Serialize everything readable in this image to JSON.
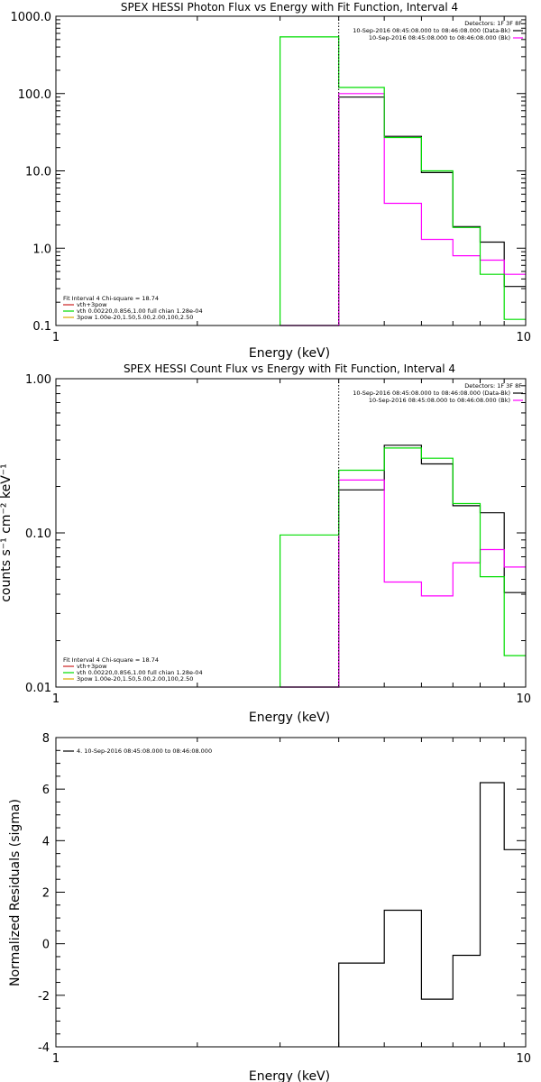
{
  "chart_data": [
    {
      "id": "photon",
      "type": "line",
      "title": "SPEX HESSI Photon Flux vs Energy with Fit Function, Interval 4",
      "xlabel": "Energy (keV)",
      "ylabel": "",
      "xscale": "log",
      "yscale": "log",
      "xlim": [
        1,
        10
      ],
      "ylim": [
        0.1,
        1000
      ],
      "x_ticks": [
        "1",
        "10"
      ],
      "y_ticks": [
        "1000.0",
        "100.0",
        "10.0",
        "1.0",
        "0.1"
      ],
      "edges": [
        3,
        4,
        5,
        6,
        7,
        8,
        9,
        10
      ],
      "series": [
        {
          "name": "10-Sep-2016 08:45:08.000 to 08:46:08.000 (Data-Bk)",
          "color": "#000000",
          "values": [
            0.1,
            90,
            28,
            9.5,
            1.9,
            1.2,
            0.32
          ]
        },
        {
          "name": "10-Sep-2016 08:45:08.000 to 08:46:08.000 (Bk)",
          "color": "#ff00ff",
          "values": [
            0.1,
            100,
            3.8,
            1.3,
            0.8,
            0.7,
            0.46
          ]
        },
        {
          "name": "vth 0.00220,0.856,1.00  full chian 1.28e-04",
          "color": "#00dd00",
          "values": [
            540,
            120,
            27,
            10,
            1.85,
            0.46,
            0.12
          ]
        },
        {
          "name": "3pow 1.00e-20,1.50,5.00,2.00,100,2.50",
          "color": "#ddaa00",
          "values": []
        }
      ],
      "dotted_x": 4,
      "detectors": "Detectors: 1F 3F 8F",
      "fit_text": "Fit Interval 4   Chi-square = 18.74",
      "fit_legend": [
        {
          "label": "vth+3pow",
          "color": "#cc2222"
        },
        {
          "label": "vth 0.00220,0.856,1.00  full chian 1.28e-04",
          "color": "#00dd00"
        },
        {
          "label": "3pow 1.00e-20,1.50,5.00,2.00,100,2.50",
          "color": "#ddaa00"
        }
      ]
    },
    {
      "id": "count",
      "type": "line",
      "title": "SPEX HESSI Count Flux vs Energy with Fit Function, Interval 4",
      "xlabel": "Energy (keV)",
      "ylabel": "counts s⁻¹ cm⁻² keV⁻¹",
      "xscale": "log",
      "yscale": "log",
      "xlim": [
        1,
        10
      ],
      "ylim": [
        0.01,
        1
      ],
      "x_ticks": [
        "1",
        "10"
      ],
      "y_ticks": [
        "1.00",
        "0.10",
        "0.01"
      ],
      "edges": [
        3,
        4,
        5,
        6,
        7,
        8,
        9,
        10
      ],
      "series": [
        {
          "name": "10-Sep-2016 08:45:08.000 to 08:46:08.000 (Data-Bk)",
          "color": "#000000",
          "values": [
            0.01,
            0.19,
            0.37,
            0.28,
            0.15,
            0.135,
            0.041
          ]
        },
        {
          "name": "10-Sep-2016 08:45:08.000 to 08:46:08.000 (Bk)",
          "color": "#ff00ff",
          "values": [
            0.01,
            0.22,
            0.048,
            0.039,
            0.064,
            0.078,
            0.06
          ]
        },
        {
          "name": "vth 0.00220,0.856,1.00  full chian 1.28e-04",
          "color": "#00dd00",
          "values": [
            0.097,
            0.255,
            0.355,
            0.305,
            0.155,
            0.052,
            0.016
          ]
        }
      ],
      "dotted_x": 4,
      "detectors": "Detectors: 1F 3F 8F",
      "fit_text": "Fit Interval 4   Chi-square = 18.74",
      "fit_legend": [
        {
          "label": "vth+3pow",
          "color": "#cc2222"
        },
        {
          "label": "vth 0.00220,0.856,1.00  full chian 1.28e-04",
          "color": "#00dd00"
        },
        {
          "label": "3pow 1.00e-20,1.50,5.00,2.00,100,2.50",
          "color": "#ddaa00"
        }
      ]
    },
    {
      "id": "resid",
      "type": "line",
      "title": "",
      "xlabel": "Energy (keV)",
      "ylabel": "Normalized Residuals (sigma)",
      "xscale": "log",
      "yscale": "linear",
      "xlim": [
        1,
        10
      ],
      "ylim": [
        -4,
        8
      ],
      "x_ticks": [
        "1",
        "10"
      ],
      "y_ticks": [
        "8",
        "6",
        "4",
        "2",
        "0",
        "-2",
        "-4"
      ],
      "edges": [
        4,
        5,
        6,
        7,
        8,
        9,
        10
      ],
      "series": [
        {
          "name": "4. 10-Sep-2016 08:45:08.000 to 08:46:08.000",
          "color": "#000000",
          "values": [
            -0.75,
            1.3,
            -2.15,
            -0.45,
            6.25,
            3.65
          ]
        }
      ]
    }
  ]
}
